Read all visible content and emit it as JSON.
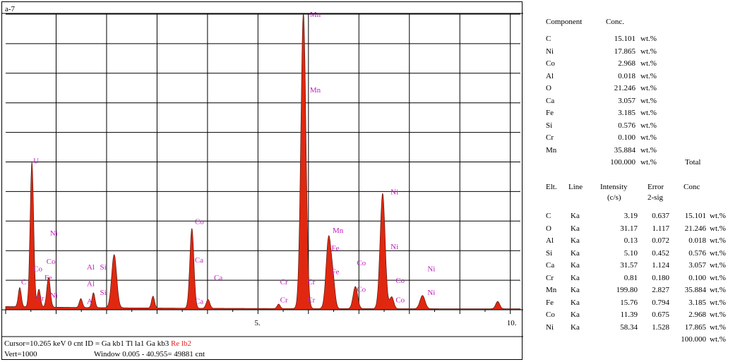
{
  "chart_data": {
    "type": "area",
    "title": "a-7",
    "x_unit": "keV",
    "xlim": [
      0,
      10.2
    ],
    "ylim": [
      0,
      1000
    ],
    "grid": true,
    "x_tick_labels": [
      {
        "x": 5,
        "label": "5."
      },
      {
        "x": 10,
        "label": "10."
      }
    ],
    "peaks": [
      {
        "x": 0.28,
        "y": 65,
        "w": 0.03
      },
      {
        "x": 0.52,
        "y": 490,
        "w": 0.035
      },
      {
        "x": 0.66,
        "y": 60,
        "w": 0.03
      },
      {
        "x": 0.85,
        "y": 100,
        "w": 0.035
      },
      {
        "x": 1.49,
        "y": 30,
        "w": 0.03
      },
      {
        "x": 1.74,
        "y": 50,
        "w": 0.03
      },
      {
        "x": 2.15,
        "y": 180,
        "w": 0.05
      },
      {
        "x": 2.92,
        "y": 40,
        "w": 0.03
      },
      {
        "x": 3.69,
        "y": 270,
        "w": 0.04
      },
      {
        "x": 4.01,
        "y": 30,
        "w": 0.035
      },
      {
        "x": 5.41,
        "y": 15,
        "w": 0.03
      },
      {
        "x": 5.9,
        "y": 1000,
        "w": 0.05
      },
      {
        "x": 6.4,
        "y": 240,
        "w": 0.05
      },
      {
        "x": 6.49,
        "y": 80,
        "w": 0.04
      },
      {
        "x": 6.93,
        "y": 75,
        "w": 0.045
      },
      {
        "x": 7.47,
        "y": 390,
        "w": 0.05
      },
      {
        "x": 7.65,
        "y": 40,
        "w": 0.04
      },
      {
        "x": 8.26,
        "y": 45,
        "w": 0.05
      },
      {
        "x": 9.75,
        "y": 25,
        "w": 0.04
      }
    ],
    "peak_labels": [
      {
        "text": "C",
        "x": 0.28,
        "y": 95
      },
      {
        "text": "U",
        "x": 0.52,
        "y": 505
      },
      {
        "text": "Ni",
        "x": 0.85,
        "y": 260
      },
      {
        "text": "Co",
        "x": 0.52,
        "y": 140
      },
      {
        "text": "Co",
        "x": 0.78,
        "y": 165
      },
      {
        "text": "Fe",
        "x": 0.74,
        "y": 110
      },
      {
        "text": "Cr",
        "x": 0.58,
        "y": 40
      },
      {
        "text": "Ni",
        "x": 0.85,
        "y": 50
      },
      {
        "text": "Al",
        "x": 1.58,
        "y": 145
      },
      {
        "text": "Si",
        "x": 1.84,
        "y": 145
      },
      {
        "text": "Al",
        "x": 1.58,
        "y": 90
      },
      {
        "text": "Si",
        "x": 1.84,
        "y": 60
      },
      {
        "text": "Al",
        "x": 1.58,
        "y": 30
      },
      {
        "text": "Co",
        "x": 3.72,
        "y": 300
      },
      {
        "text": "Ca",
        "x": 3.72,
        "y": 170
      },
      {
        "text": "Ca",
        "x": 4.1,
        "y": 110
      },
      {
        "text": "Ca",
        "x": 3.72,
        "y": 30
      },
      {
        "text": "Cr",
        "x": 5.41,
        "y": 95
      },
      {
        "text": "Cr",
        "x": 5.41,
        "y": 35
      },
      {
        "text": "Cr",
        "x": 5.95,
        "y": 95
      },
      {
        "text": "Cr",
        "x": 5.95,
        "y": 35
      },
      {
        "text": "Mn",
        "x": 6.0,
        "y": 1000
      },
      {
        "text": "Mn",
        "x": 6.0,
        "y": 745
      },
      {
        "text": "Mn",
        "x": 6.45,
        "y": 270
      },
      {
        "text": "Fe",
        "x": 6.43,
        "y": 210
      },
      {
        "text": "Fe",
        "x": 6.43,
        "y": 130
      },
      {
        "text": "Co",
        "x": 6.93,
        "y": 160
      },
      {
        "text": "Co",
        "x": 6.93,
        "y": 70
      },
      {
        "text": "Ni",
        "x": 7.6,
        "y": 400
      },
      {
        "text": "Ni",
        "x": 7.6,
        "y": 215
      },
      {
        "text": "Co",
        "x": 7.7,
        "y": 100
      },
      {
        "text": "Co",
        "x": 7.7,
        "y": 35
      },
      {
        "text": "Ni",
        "x": 8.33,
        "y": 140
      },
      {
        "text": "Ni",
        "x": 8.33,
        "y": 60
      }
    ]
  },
  "status": {
    "line1_black": "Cursor=10.265 keV   0 cnt  ID = Ga kb1  Tl la1  Ga kb3",
    "line1_red": "Re lb2",
    "line2_left": "Vert=1000",
    "line2_right": "Window 0.005 - 40.955=   49881 cnt"
  },
  "composition": {
    "header_component": "Component",
    "header_conc": "Conc.",
    "rows": [
      {
        "el": "C",
        "val": "15.101",
        "unit": "wt.%"
      },
      {
        "el": "Ni",
        "val": "17.865",
        "unit": "wt.%"
      },
      {
        "el": "Co",
        "val": "2.968",
        "unit": "wt.%"
      },
      {
        "el": "Al",
        "val": "0.018",
        "unit": "wt.%"
      },
      {
        "el": "O",
        "val": "21.246",
        "unit": "wt.%"
      },
      {
        "el": "Ca",
        "val": "3.057",
        "unit": "wt.%"
      },
      {
        "el": "Fe",
        "val": "3.185",
        "unit": "wt.%"
      },
      {
        "el": "Si",
        "val": "0.576",
        "unit": "wt.%"
      },
      {
        "el": "Cr",
        "val": "0.100",
        "unit": "wt.%"
      },
      {
        "el": "Mn",
        "val": "35.884",
        "unit": "wt.%"
      }
    ],
    "total_val": "100.000",
    "total_unit": "wt.%",
    "total_label": "Total"
  },
  "details": {
    "headers": {
      "elt": "Elt.",
      "line": "Line",
      "intensity": "Intensity",
      "intensity_unit": "(c/s)",
      "error": "Error",
      "error_sub": "2-sig",
      "conc": "Conc"
    },
    "rows": [
      {
        "el": "C",
        "line": "Ka",
        "intensity": "3.19",
        "error": "0.637",
        "conc": "15.101",
        "unit": "wt.%"
      },
      {
        "el": "O",
        "line": "Ka",
        "intensity": "31.17",
        "error": "1.117",
        "conc": "21.246",
        "unit": "wt.%"
      },
      {
        "el": "Al",
        "line": "Ka",
        "intensity": "0.13",
        "error": "0.072",
        "conc": "0.018",
        "unit": "wt.%"
      },
      {
        "el": "Si",
        "line": "Ka",
        "intensity": "5.10",
        "error": "0.452",
        "conc": "0.576",
        "unit": "wt.%"
      },
      {
        "el": "Ca",
        "line": "Ka",
        "intensity": "31.57",
        "error": "1.124",
        "conc": "3.057",
        "unit": "wt.%"
      },
      {
        "el": "Cr",
        "line": "Ka",
        "intensity": "0.81",
        "error": "0.180",
        "conc": "0.100",
        "unit": "wt.%"
      },
      {
        "el": "Mn",
        "line": "Ka",
        "intensity": "199.80",
        "error": "2.827",
        "conc": "35.884",
        "unit": "wt.%"
      },
      {
        "el": "Fe",
        "line": "Ka",
        "intensity": "15.76",
        "error": "0.794",
        "conc": "3.185",
        "unit": "wt.%"
      },
      {
        "el": "Co",
        "line": "Ka",
        "intensity": "11.39",
        "error": "0.675",
        "conc": "2.968",
        "unit": "wt.%"
      },
      {
        "el": "Ni",
        "line": "Ka",
        "intensity": "58.34",
        "error": "1.528",
        "conc": "17.865",
        "unit": "wt.%"
      }
    ],
    "total_val": "100.000",
    "total_unit": "wt.%"
  },
  "colors": {
    "spectrum_fill": "#e02810",
    "spectrum_outline": "#5a1a10",
    "label": "#c020c0",
    "status_red": "#e02020",
    "grid": "#000000"
  }
}
